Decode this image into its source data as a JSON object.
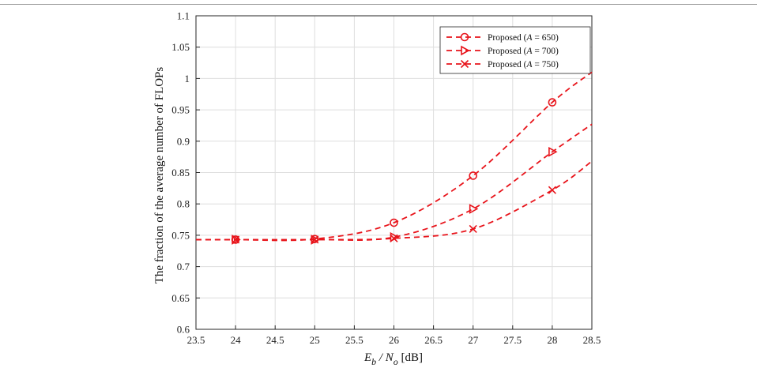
{
  "chart_data": {
    "type": "line",
    "title": "",
    "xlabel": {
      "main": "E",
      "sub1": "b",
      "sep": " / N",
      "sub2": "o",
      "unit": " [dB]"
    },
    "ylabel": "The fraction of the average number of FLOPs",
    "xlim": [
      23.5,
      28.5
    ],
    "ylim": [
      0.6,
      1.1
    ],
    "xticks": [
      "23.5",
      "24",
      "24.5",
      "25",
      "25.5",
      "26",
      "26.5",
      "27",
      "27.5",
      "28",
      "28.5"
    ],
    "yticks": [
      "0.6",
      "0.65",
      "0.7",
      "0.75",
      "0.8",
      "0.85",
      "0.9",
      "0.95",
      "1",
      "1.05",
      "1.1"
    ],
    "grid": true,
    "legend_position": "top-right",
    "line_color": "#e8141b",
    "series": [
      {
        "name": "Proposed (A = 650)",
        "legend_prefix": "Proposed (",
        "legend_var": "A",
        "legend_suffix": " = 650)",
        "marker": "circle",
        "x": [
          23.5,
          24,
          25,
          26,
          27,
          28,
          28.5
        ],
        "y": [
          0.743,
          0.743,
          0.744,
          0.77,
          0.845,
          0.962,
          1.01
        ],
        "marker_x": [
          24,
          25,
          26,
          27,
          28
        ]
      },
      {
        "name": "Proposed (A = 700)",
        "legend_prefix": "Proposed (",
        "legend_var": "A",
        "legend_suffix": " = 700)",
        "marker": "triangle-right",
        "x": [
          23.5,
          24,
          25,
          26,
          27,
          28,
          28.5
        ],
        "y": [
          0.743,
          0.743,
          0.743,
          0.747,
          0.792,
          0.883,
          0.927
        ],
        "marker_x": [
          24,
          25,
          26,
          27,
          28
        ]
      },
      {
        "name": "Proposed (A = 750)",
        "legend_prefix": "Proposed (",
        "legend_var": "A",
        "legend_suffix": " = 750)",
        "marker": "x",
        "x": [
          23.5,
          24,
          25,
          26,
          27,
          28,
          28.5
        ],
        "y": [
          0.743,
          0.743,
          0.743,
          0.745,
          0.76,
          0.822,
          0.868
        ],
        "marker_x": [
          24,
          25,
          26,
          27,
          28
        ]
      }
    ]
  }
}
